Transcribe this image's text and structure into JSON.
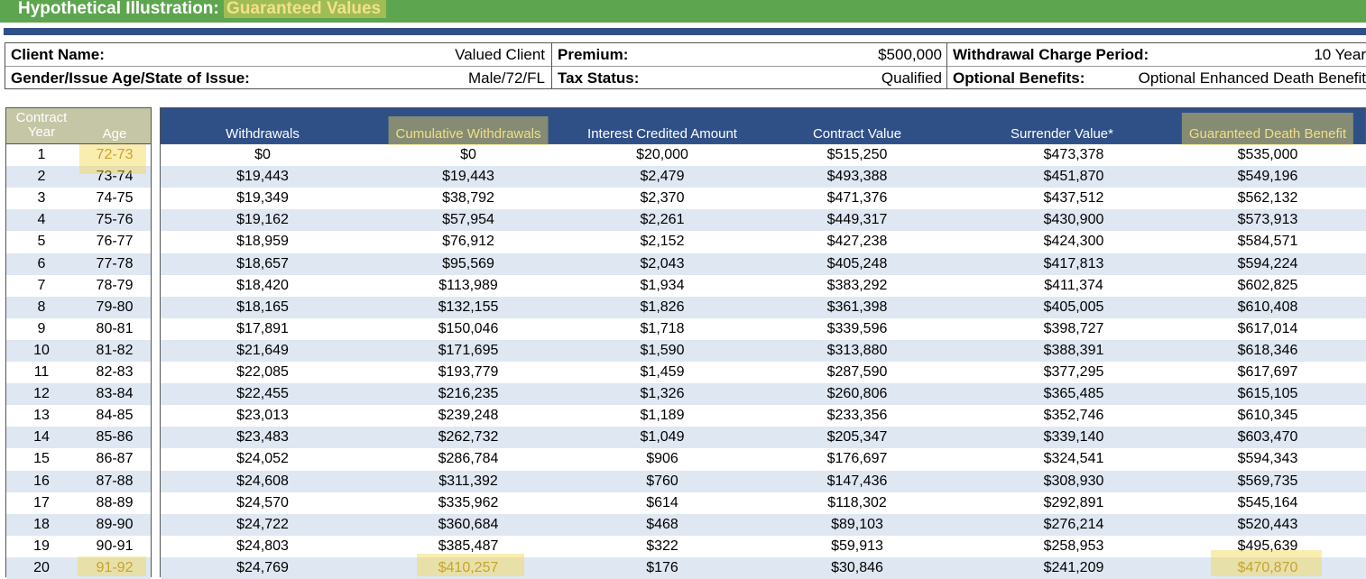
{
  "header": {
    "title_prefix": "Hypothetical Illustration:",
    "title_highlight": "Guaranteed Values"
  },
  "info": {
    "client_name_label": "Client Name:",
    "client_name": "Valued Client",
    "gender_label": "Gender/Issue Age/State of Issue:",
    "gender": "Male/72/FL",
    "premium_label": "Premium:",
    "premium": "$500,000",
    "tax_label": "Tax Status:",
    "tax": "Qualified",
    "wcp_label": "Withdrawal Charge Period:",
    "wcp": "10 Year",
    "benefits_label": "Optional Benefits:",
    "benefits": "Optional Enhanced Death Benefit"
  },
  "table": {
    "headers": {
      "contract": "Contract",
      "year": "Year",
      "age": "Age",
      "withdrawals": "Withdrawals",
      "cumulative": "Cumulative Withdrawals",
      "interest": "Interest Credited Amount",
      "contract_value": "Contract Value",
      "surrender": "Surrender Value*",
      "gdb": "Guaranteed Death Benefit"
    },
    "highlight_color": "#f5d750",
    "rows": [
      [
        "1",
        "72-73",
        "$0",
        "$0",
        "$20,000",
        "$515,250",
        "$473,378",
        "$535,000"
      ],
      [
        "2",
        "73-74",
        "$19,443",
        "$19,443",
        "$2,479",
        "$493,388",
        "$451,870",
        "$549,196"
      ],
      [
        "3",
        "74-75",
        "$19,349",
        "$38,792",
        "$2,370",
        "$471,376",
        "$437,512",
        "$562,132"
      ],
      [
        "4",
        "75-76",
        "$19,162",
        "$57,954",
        "$2,261",
        "$449,317",
        "$430,900",
        "$573,913"
      ],
      [
        "5",
        "76-77",
        "$18,959",
        "$76,912",
        "$2,152",
        "$427,238",
        "$424,300",
        "$584,571"
      ],
      [
        "6",
        "77-78",
        "$18,657",
        "$95,569",
        "$2,043",
        "$405,248",
        "$417,813",
        "$594,224"
      ],
      [
        "7",
        "78-79",
        "$18,420",
        "$113,989",
        "$1,934",
        "$383,292",
        "$411,374",
        "$602,825"
      ],
      [
        "8",
        "79-80",
        "$18,165",
        "$132,155",
        "$1,826",
        "$361,398",
        "$405,005",
        "$610,408"
      ],
      [
        "9",
        "80-81",
        "$17,891",
        "$150,046",
        "$1,718",
        "$339,596",
        "$398,727",
        "$617,014"
      ],
      [
        "10",
        "81-82",
        "$21,649",
        "$171,695",
        "$1,590",
        "$313,880",
        "$388,391",
        "$618,346"
      ],
      [
        "11",
        "82-83",
        "$22,085",
        "$193,779",
        "$1,459",
        "$287,590",
        "$377,295",
        "$617,697"
      ],
      [
        "12",
        "83-84",
        "$22,455",
        "$216,235",
        "$1,326",
        "$260,806",
        "$365,485",
        "$615,105"
      ],
      [
        "13",
        "84-85",
        "$23,013",
        "$239,248",
        "$1,189",
        "$233,356",
        "$352,746",
        "$610,345"
      ],
      [
        "14",
        "85-86",
        "$23,483",
        "$262,732",
        "$1,049",
        "$205,347",
        "$339,140",
        "$603,470"
      ],
      [
        "15",
        "86-87",
        "$24,052",
        "$286,784",
        "$906",
        "$176,697",
        "$324,541",
        "$594,343"
      ],
      [
        "16",
        "87-88",
        "$24,608",
        "$311,392",
        "$760",
        "$147,436",
        "$308,930",
        "$569,735"
      ],
      [
        "17",
        "88-89",
        "$24,570",
        "$335,962",
        "$614",
        "$118,302",
        "$292,891",
        "$545,164"
      ],
      [
        "18",
        "89-90",
        "$24,722",
        "$360,684",
        "$468",
        "$89,103",
        "$276,214",
        "$520,443"
      ],
      [
        "19",
        "90-91",
        "$24,803",
        "$385,487",
        "$322",
        "$59,913",
        "$258,953",
        "$495,639"
      ],
      [
        "20",
        "91-92",
        "$24,769",
        "$410,257",
        "$176",
        "$30,846",
        "$241,209",
        "$470,870"
      ]
    ]
  }
}
